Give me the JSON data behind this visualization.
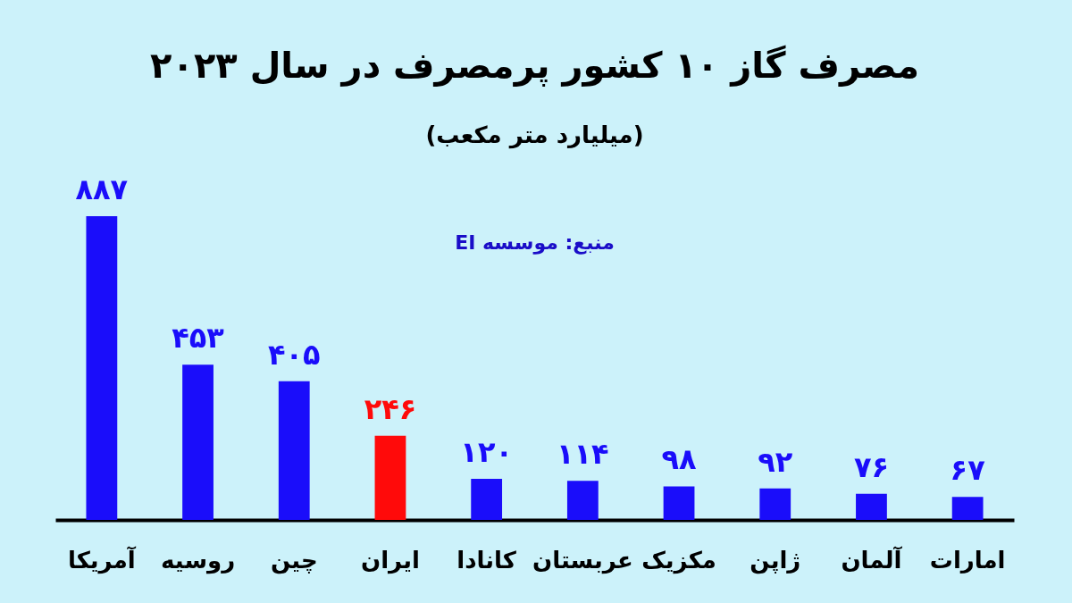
{
  "chart_data": {
    "type": "bar",
    "title": "مصرف گاز ۱۰ کشور پرمصرف در سال ۲۰۲۳",
    "subtitle": "(میلیارد متر مکعب)",
    "annotations": [
      "منبع: موسسه EI"
    ],
    "categories": [
      "آمریکا",
      "روسیه",
      "چین",
      "ایران",
      "کانادا",
      "عربستان",
      "مکزیک",
      "ژاپن",
      "آلمان",
      "امارات"
    ],
    "values": [
      887,
      453,
      405,
      246,
      120,
      114,
      98,
      92,
      76,
      67
    ],
    "value_labels": [
      "۸۸۷",
      "۴۵۳",
      "۴۰۵",
      "۲۴۶",
      "۱۲۰",
      "۱۱۴",
      "۹۸",
      "۹۲",
      "۷۶",
      "۶۷"
    ],
    "colors": [
      "#1a0dfa",
      "#1a0dfa",
      "#1a0dfa",
      "#ff0a0a",
      "#1a0dfa",
      "#1a0dfa",
      "#1a0dfa",
      "#1a0dfa",
      "#1a0dfa",
      "#1a0dfa"
    ]
  }
}
